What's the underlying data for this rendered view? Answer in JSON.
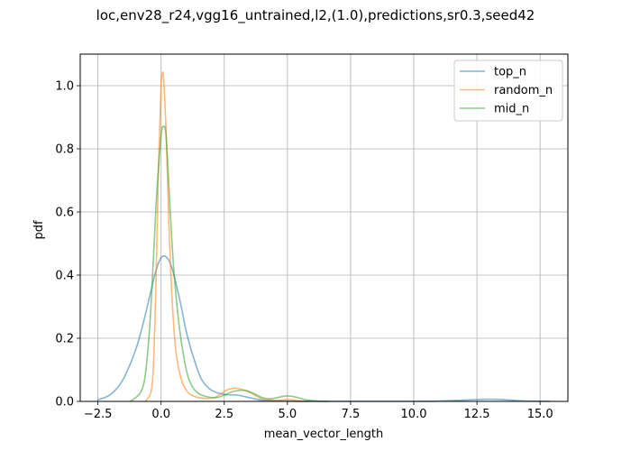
{
  "chart_data": {
    "type": "line",
    "title": "loc,env28_r24,vgg16_untrained,l2,(1.0),predictions,sr0.3,seed42",
    "xlabel": "mean_vector_length",
    "ylabel": "pdf",
    "xlim": [
      -3.2,
      16.1
    ],
    "ylim": [
      0.0,
      1.1
    ],
    "xticks": [
      -2.5,
      0.0,
      2.5,
      5.0,
      7.5,
      10.0,
      12.5,
      15.0
    ],
    "xtick_labels": [
      "−2.5",
      "0.0",
      "2.5",
      "5.0",
      "7.5",
      "10.0",
      "12.5",
      "15.0"
    ],
    "yticks": [
      0.0,
      0.2,
      0.4,
      0.6,
      0.8,
      1.0
    ],
    "ytick_labels": [
      "0.0",
      "0.2",
      "0.4",
      "0.6",
      "0.8",
      "1.0"
    ],
    "grid": true,
    "legend_position": "top-right",
    "series": [
      {
        "name": "top_n",
        "color": "#1f77b4",
        "x": [
          -2.5,
          -2.0,
          -1.5,
          -1.0,
          -0.7,
          -0.4,
          -0.2,
          0.0,
          0.2,
          0.4,
          0.6,
          0.8,
          1.0,
          1.3,
          1.6,
          2.0,
          2.5,
          3.0,
          3.5,
          4.0,
          5.0,
          6.0,
          8.0,
          10.0,
          11.0,
          12.0,
          12.5,
          13.0,
          13.5,
          14.0,
          14.5,
          15.4
        ],
        "y": [
          0.005,
          0.022,
          0.07,
          0.165,
          0.25,
          0.35,
          0.415,
          0.455,
          0.458,
          0.43,
          0.37,
          0.3,
          0.22,
          0.135,
          0.07,
          0.035,
          0.022,
          0.02,
          0.012,
          0.004,
          0.001,
          0.0,
          0.0,
          0.0,
          0.001,
          0.004,
          0.006,
          0.007,
          0.006,
          0.003,
          0.001,
          0.0
        ]
      },
      {
        "name": "random_n",
        "color": "#ff7f0e",
        "x": [
          -0.6,
          -0.4,
          -0.3,
          -0.2,
          -0.1,
          0.0,
          0.05,
          0.1,
          0.2,
          0.3,
          0.4,
          0.5,
          0.6,
          0.8,
          1.0,
          1.2,
          1.5,
          2.0,
          2.3,
          2.6,
          2.9,
          3.1,
          3.4,
          3.7,
          4.0,
          4.3,
          4.6,
          5.0,
          5.3,
          5.6,
          5.8
        ],
        "y": [
          0.002,
          0.03,
          0.12,
          0.38,
          0.75,
          1.0,
          1.04,
          1.02,
          0.85,
          0.58,
          0.38,
          0.24,
          0.15,
          0.07,
          0.035,
          0.02,
          0.012,
          0.01,
          0.02,
          0.036,
          0.042,
          0.04,
          0.033,
          0.02,
          0.008,
          0.004,
          0.003,
          0.006,
          0.004,
          0.001,
          0.0
        ]
      },
      {
        "name": "mid_n",
        "color": "#2ca02c",
        "x": [
          -1.2,
          -0.8,
          -0.6,
          -0.4,
          -0.2,
          0.0,
          0.1,
          0.2,
          0.35,
          0.5,
          0.7,
          0.9,
          1.1,
          1.4,
          1.8,
          2.2,
          2.5,
          2.8,
          3.1,
          3.4,
          3.7,
          4.0,
          4.3,
          4.6,
          4.9,
          5.2,
          5.5,
          5.8,
          6.2,
          6.6
        ],
        "y": [
          0.001,
          0.03,
          0.1,
          0.3,
          0.62,
          0.84,
          0.87,
          0.84,
          0.62,
          0.42,
          0.25,
          0.14,
          0.07,
          0.03,
          0.015,
          0.012,
          0.02,
          0.03,
          0.035,
          0.033,
          0.024,
          0.012,
          0.008,
          0.012,
          0.017,
          0.016,
          0.01,
          0.004,
          0.001,
          0.0
        ]
      }
    ]
  }
}
